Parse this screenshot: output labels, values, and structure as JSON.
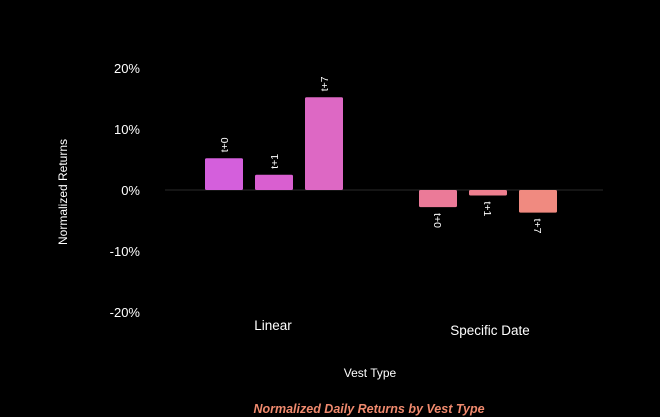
{
  "chart_data": {
    "type": "bar",
    "title": "Normalized Daily Returns by Vest Type",
    "xlabel": "Vest Type",
    "ylabel": "Normalized Returns",
    "ylim": [
      -20,
      20
    ],
    "yticks": [
      20,
      10,
      0,
      -10,
      -20
    ],
    "ytick_labels": [
      "20%",
      "10%",
      "0%",
      "-10%",
      "-20%"
    ],
    "grid": false,
    "legend": "none",
    "categories": [
      "Linear",
      "Specific Date"
    ],
    "groups": [
      {
        "category": "Linear",
        "bars": [
          {
            "label": "t+0",
            "value": 5.2,
            "color": "#d45fdc"
          },
          {
            "label": "t+1",
            "value": 2.5,
            "color": "#d95fd0"
          },
          {
            "label": "t+7",
            "value": 15.2,
            "color": "#dd68c4"
          }
        ]
      },
      {
        "category": "Specific Date",
        "bars": [
          {
            "label": "t+0",
            "value": -2.8,
            "color": "#eb7a98"
          },
          {
            "label": "t+1",
            "value": -0.9,
            "color": "#ee7f8f"
          },
          {
            "label": "t+7",
            "value": -3.7,
            "color": "#f08a80"
          }
        ]
      }
    ],
    "colors": {
      "background": "#000000",
      "text": "#ffffff",
      "title": "#f08a6e",
      "baseline": "#2a2a2a"
    }
  }
}
